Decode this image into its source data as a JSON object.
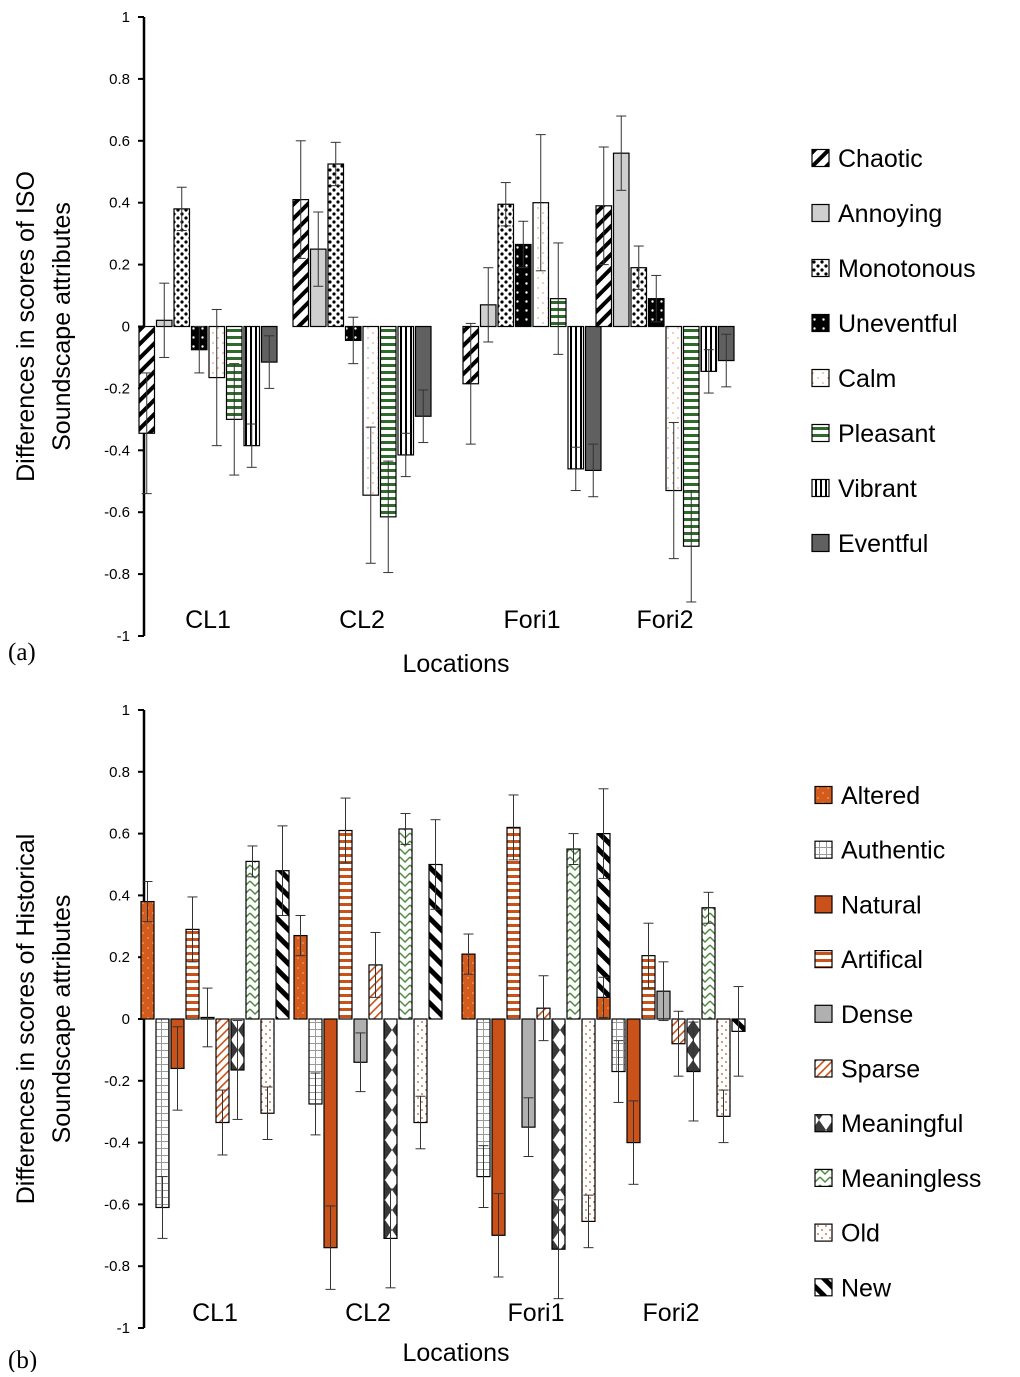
{
  "palette": {
    "altered": "#d35b1c",
    "natural": "#c9521a",
    "authentic": "#9a9a9a",
    "artifical_border": "#2a3f8f",
    "artifical_stripe": "#c9521a",
    "dense": "#b0b0b0",
    "sparse": "#c9521a",
    "meaningful": "#3a3a3a",
    "meaningless": "#4c8a3c",
    "old": "#c9521a",
    "annoying": "#cfcfcf",
    "pleasant": "#2e6b2a",
    "eventful": "#606060"
  },
  "chart_data": [
    {
      "panel_label": "(a)",
      "type": "bar",
      "xlabel": "Locations",
      "ylabel": "Differences in scores of ISO Soundscape attributes",
      "ylabel_lines": [
        "Differences in scores of ISO",
        "Soundscape attributes"
      ],
      "ylim": [
        -1,
        1
      ],
      "yticks": [
        "1",
        "0.8",
        "0.6",
        "0.4",
        "0.2",
        "0",
        "-0.2",
        "-0.4",
        "-0.6",
        "-0.8",
        "-1"
      ],
      "categories": [
        "CL1",
        "CL2",
        "Fori1",
        "Fori2"
      ],
      "legend_position": "right",
      "grid": false,
      "series": [
        {
          "name": "Chaotic",
          "pattern": "chaotic",
          "values": [
            -0.345,
            0.41,
            -0.185,
            0.39
          ],
          "errors": [
            0.195,
            0.19,
            0.195,
            0.19
          ]
        },
        {
          "name": "Annoying",
          "pattern": "annoying",
          "values": [
            0.02,
            0.25,
            0.07,
            0.56
          ],
          "errors": [
            0.12,
            0.12,
            0.12,
            0.12
          ]
        },
        {
          "name": "Monotonous",
          "pattern": "monotonous",
          "values": [
            0.38,
            0.525,
            0.395,
            0.19
          ],
          "errors": [
            0.07,
            0.07,
            0.07,
            0.07
          ]
        },
        {
          "name": "Uneventful",
          "pattern": "uneventful",
          "values": [
            -0.075,
            -0.045,
            0.265,
            0.09
          ],
          "errors": [
            0.075,
            0.075,
            0.075,
            0.075
          ]
        },
        {
          "name": "Calm",
          "pattern": "calm",
          "values": [
            -0.165,
            -0.545,
            0.4,
            -0.53
          ],
          "errors": [
            0.22,
            0.22,
            0.22,
            0.22
          ]
        },
        {
          "name": "Pleasant",
          "pattern": "pleasant",
          "values": [
            -0.3,
            -0.615,
            0.09,
            -0.71
          ],
          "errors": [
            0.18,
            0.18,
            0.18,
            0.18
          ]
        },
        {
          "name": "Vibrant",
          "pattern": "vibrant",
          "values": [
            -0.385,
            -0.415,
            -0.46,
            -0.145
          ],
          "errors": [
            0.07,
            0.07,
            0.07,
            0.07
          ]
        },
        {
          "name": "Eventful",
          "pattern": "eventful",
          "values": [
            -0.115,
            -0.29,
            -0.465,
            -0.11
          ],
          "errors": [
            0.085,
            0.085,
            0.085,
            0.085
          ]
        }
      ]
    },
    {
      "panel_label": "(b)",
      "type": "bar",
      "xlabel": "Locations",
      "ylabel": "Differences in scores of Historical Soundscape attributes",
      "ylabel_lines": [
        "Differences in scores of Historical",
        "Soundscape attributes"
      ],
      "ylim": [
        -1,
        1
      ],
      "yticks": [
        "1",
        "0.8",
        "0.6",
        "0.4",
        "0.2",
        "0",
        "-0.2",
        "-0.4",
        "-0.6",
        "-0.8",
        "-1"
      ],
      "categories": [
        "CL1",
        "CL2",
        "Fori1",
        "Fori2"
      ],
      "legend_position": "right",
      "grid": false,
      "series": [
        {
          "name": "Altered",
          "pattern": "altered",
          "values": [
            0.38,
            0.27,
            0.21,
            0.07
          ],
          "errors": [
            0.065,
            0.065,
            0.065,
            0.065
          ]
        },
        {
          "name": "Authentic",
          "pattern": "authentic",
          "values": [
            -0.61,
            -0.275,
            -0.51,
            -0.17
          ],
          "errors": [
            0.1,
            0.1,
            0.1,
            0.1
          ]
        },
        {
          "name": "Natural",
          "pattern": "natural",
          "values": [
            -0.16,
            -0.74,
            -0.7,
            -0.4
          ],
          "errors": [
            0.135,
            0.135,
            0.135,
            0.135
          ]
        },
        {
          "name": "Artifical",
          "pattern": "artifical",
          "values": [
            0.29,
            0.61,
            0.62,
            0.205
          ],
          "errors": [
            0.105,
            0.105,
            0.105,
            0.105
          ]
        },
        {
          "name": "Dense",
          "pattern": "dense",
          "values": [
            0.005,
            -0.14,
            -0.35,
            0.09
          ],
          "errors": [
            0.095,
            0.095,
            0.095,
            0.095
          ]
        },
        {
          "name": "Sparse",
          "pattern": "sparse",
          "values": [
            -0.335,
            0.175,
            0.035,
            -0.08
          ],
          "errors": [
            0.105,
            0.105,
            0.105,
            0.105
          ]
        },
        {
          "name": "Meaningful",
          "pattern": "meaningful",
          "values": [
            -0.165,
            -0.71,
            -0.745,
            -0.17
          ],
          "errors": [
            0.16,
            0.16,
            0.16,
            0.16
          ]
        },
        {
          "name": "Meaningless",
          "pattern": "meaningless",
          "values": [
            0.51,
            0.615,
            0.55,
            0.36
          ],
          "errors": [
            0.05,
            0.05,
            0.05,
            0.05
          ]
        },
        {
          "name": "Old",
          "pattern": "old",
          "values": [
            -0.305,
            -0.335,
            -0.655,
            -0.315
          ],
          "errors": [
            0.085,
            0.085,
            0.085,
            0.085
          ]
        },
        {
          "name": "New",
          "pattern": "new",
          "values": [
            0.48,
            0.5,
            0.6,
            -0.04
          ],
          "errors": [
            0.145,
            0.145,
            0.145,
            0.145
          ]
        }
      ]
    }
  ]
}
